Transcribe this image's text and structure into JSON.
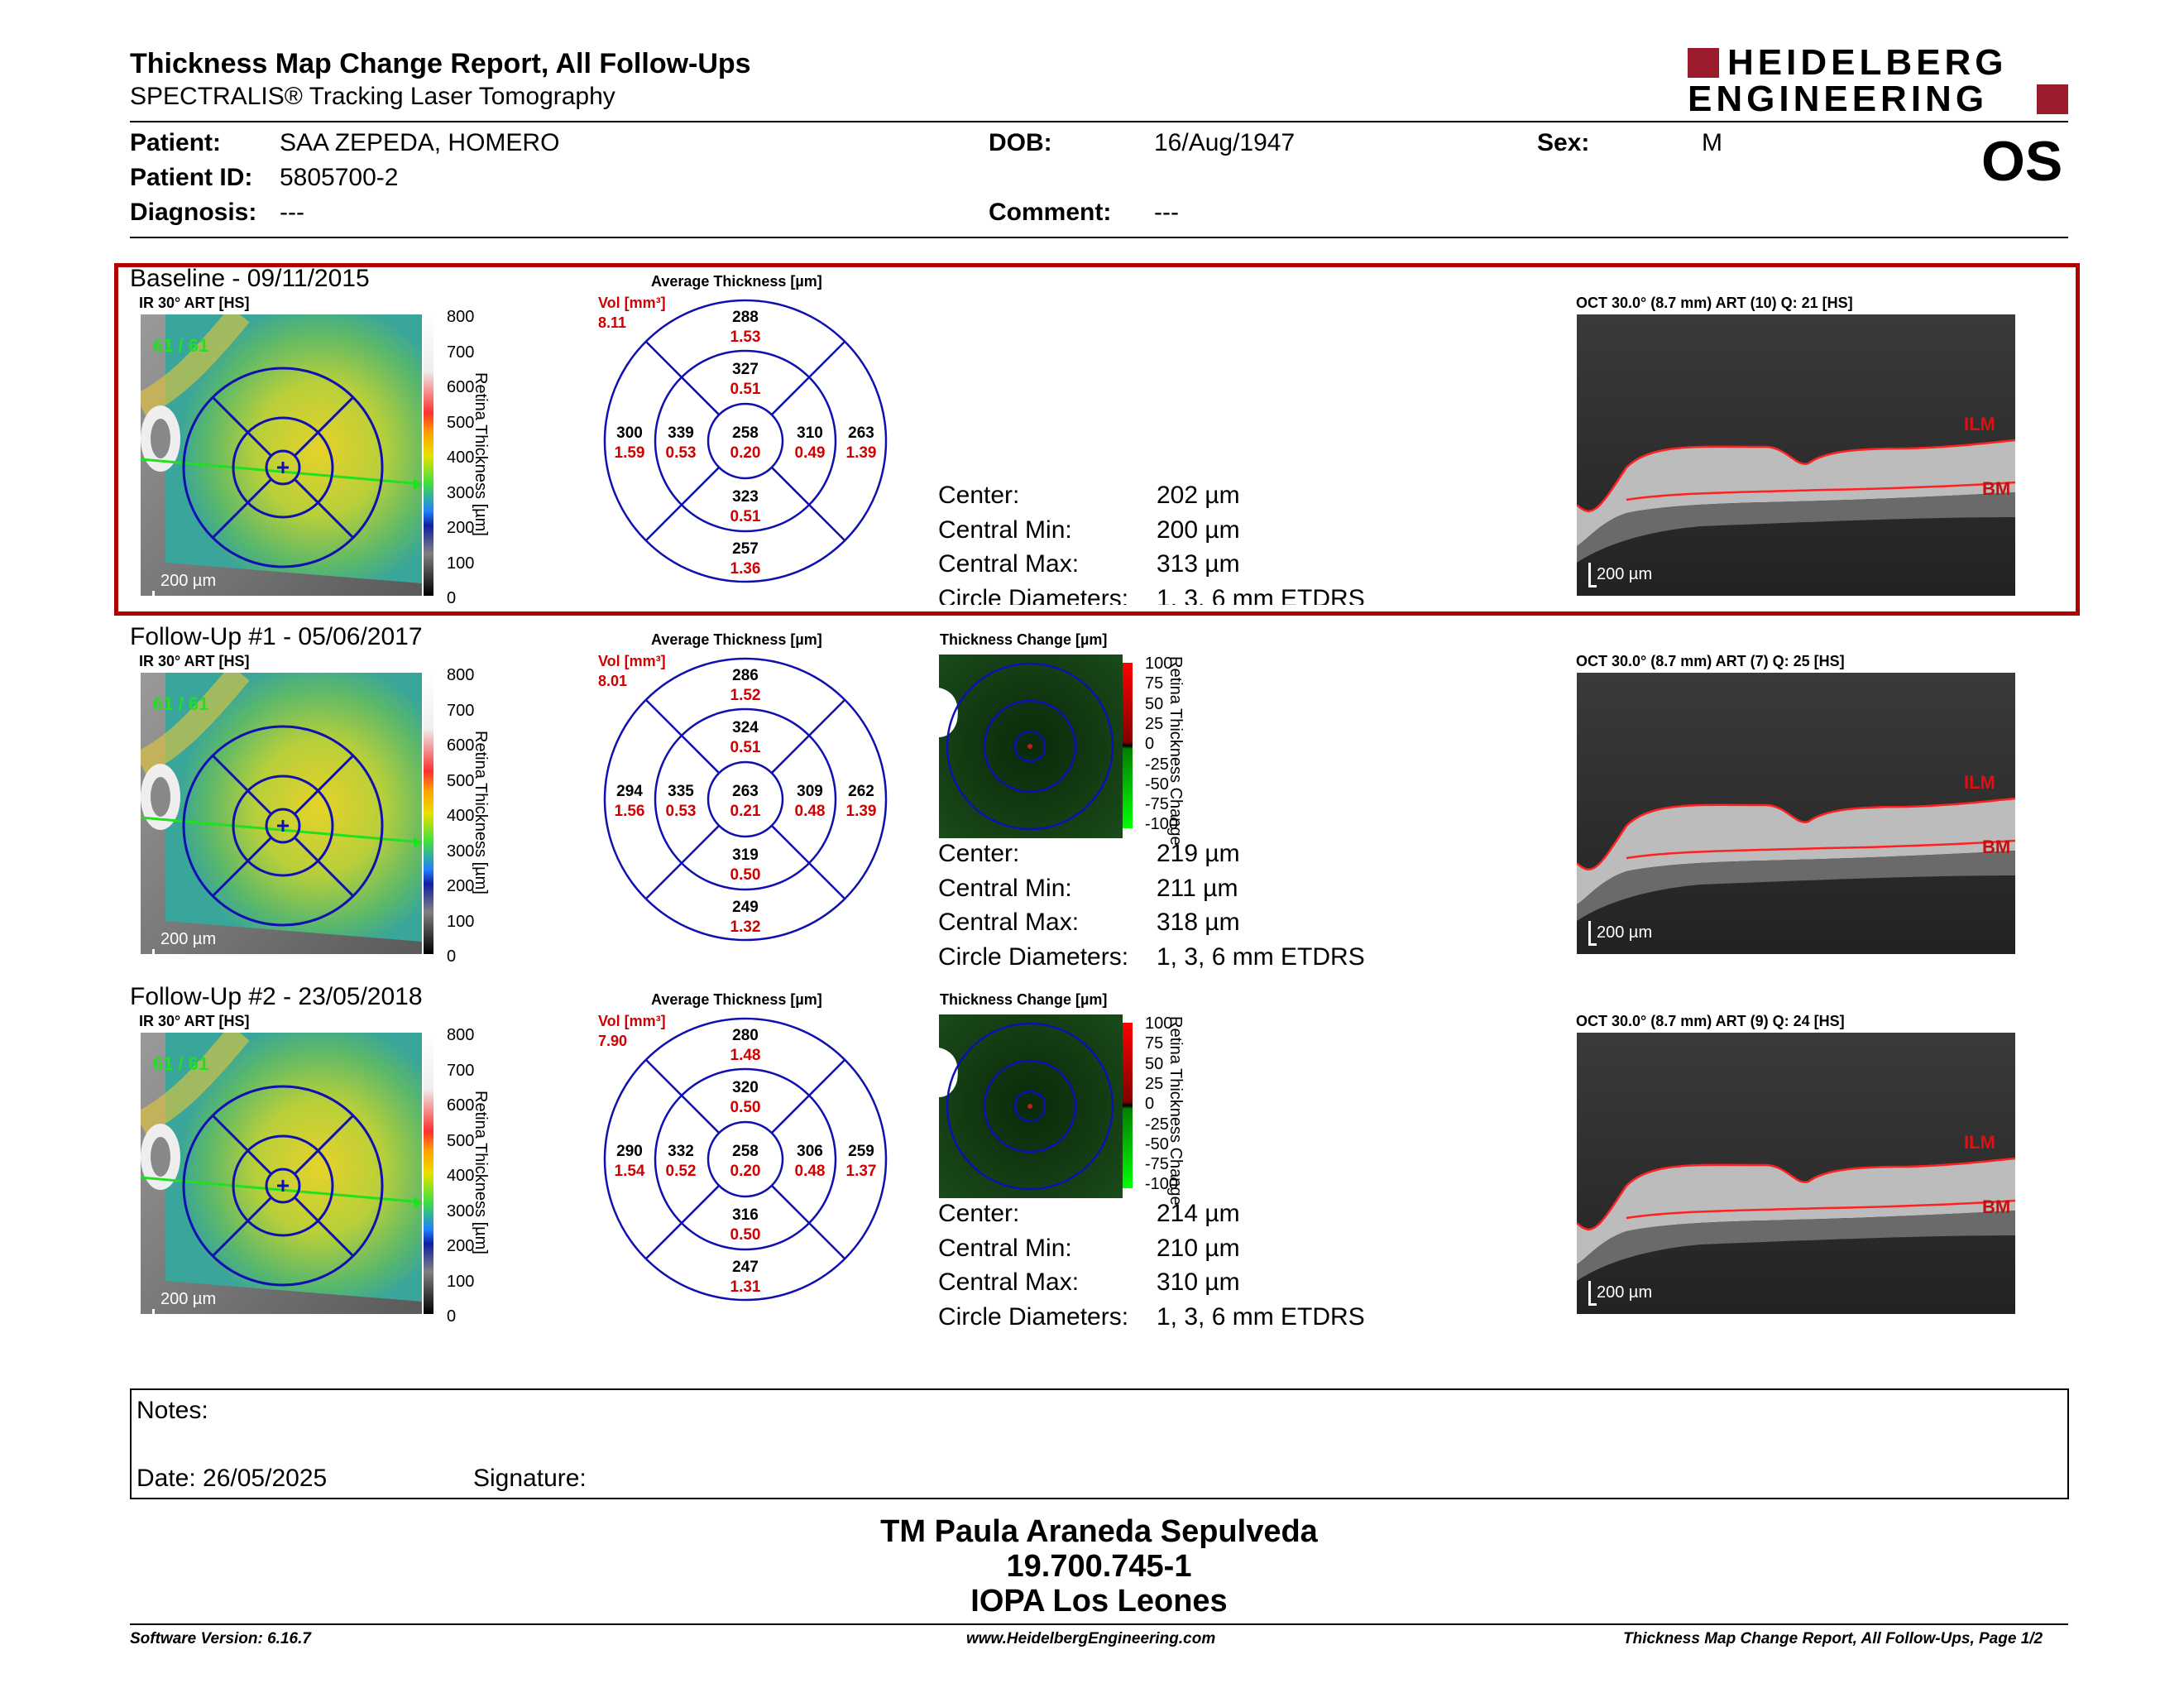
{
  "header": {
    "title": "Thickness Map Change Report, All Follow-Ups",
    "subtitle": "SPECTRALIS® Tracking Laser Tomography",
    "logo_line1": "HEIDELBERG",
    "logo_line2": "ENGINEERING",
    "eye": "OS"
  },
  "patient": {
    "patient_label": "Patient:",
    "patient_value": "SAA ZEPEDA, HOMERO",
    "id_label": "Patient ID:",
    "id_value": "5805700-2",
    "diagnosis_label": "Diagnosis:",
    "diagnosis_value": "---",
    "dob_label": "DOB:",
    "dob_value": "16/Aug/1947",
    "comment_label": "Comment:",
    "comment_value": "---",
    "sex_label": "Sex:",
    "sex_value": "M"
  },
  "common": {
    "ir_label": "IR 30° ART [HS]",
    "avg_title": "Average Thickness [µm]",
    "vol_label": "Vol [mm³]",
    "tc_title": "Thickness Change [µm]",
    "retina_axis": "Retina Thickness [µm]",
    "tc_axis": "Retina Thickness Change",
    "scale_ticks": [
      "800",
      "700",
      "600",
      "500",
      "400",
      "300",
      "200",
      "100",
      "0"
    ],
    "tc_ticks": [
      "100",
      "75",
      "50",
      "25",
      "0",
      "-25",
      "-50",
      "-75",
      "-100"
    ],
    "map_scale": "200 µm",
    "oct_scale": "200 µm",
    "ilm": "ILM",
    "bm": "BM",
    "quality_overlay": "61 / 61",
    "center_label": "Center:",
    "cmin_label": "Central Min:",
    "cmax_label": "Central Max:",
    "circ_label": "Circle Diameters:",
    "circ_value": "1, 3, 6 mm ETDRS"
  },
  "exams": [
    {
      "title": "Baseline - 09/11/2015",
      "total_vol": "8.11",
      "oct_label": "OCT 30.0° (8.7 mm) ART (10) Q: 21 [HS]",
      "grid": {
        "center": [
          "258",
          "0.20"
        ],
        "inner_sup": [
          "327",
          "0.51"
        ],
        "inner_inf": [
          "323",
          "0.51"
        ],
        "inner_left": [
          "339",
          "0.53"
        ],
        "inner_right": [
          "310",
          "0.49"
        ],
        "outer_sup": [
          "288",
          "1.53"
        ],
        "outer_inf": [
          "257",
          "1.36"
        ],
        "outer_left": [
          "300",
          "1.59"
        ],
        "outer_right": [
          "263",
          "1.39"
        ]
      },
      "center": "202 µm",
      "cmin": "200 µm",
      "cmax": "313 µm",
      "has_change": false
    },
    {
      "title": "Follow-Up #1 - 05/06/2017",
      "total_vol": "8.01",
      "oct_label": "OCT 30.0° (8.7 mm) ART (7) Q: 25 [HS]",
      "grid": {
        "center": [
          "263",
          "0.21"
        ],
        "inner_sup": [
          "324",
          "0.51"
        ],
        "inner_inf": [
          "319",
          "0.50"
        ],
        "inner_left": [
          "335",
          "0.53"
        ],
        "inner_right": [
          "309",
          "0.48"
        ],
        "outer_sup": [
          "286",
          "1.52"
        ],
        "outer_inf": [
          "249",
          "1.32"
        ],
        "outer_left": [
          "294",
          "1.56"
        ],
        "outer_right": [
          "262",
          "1.39"
        ]
      },
      "center": "219 µm",
      "cmin": "211 µm",
      "cmax": "318 µm",
      "has_change": true
    },
    {
      "title": "Follow-Up #2 - 23/05/2018",
      "total_vol": "7.90",
      "oct_label": "OCT 30.0° (8.7 mm) ART (9) Q: 24 [HS]",
      "grid": {
        "center": [
          "258",
          "0.20"
        ],
        "inner_sup": [
          "320",
          "0.50"
        ],
        "inner_inf": [
          "316",
          "0.50"
        ],
        "inner_left": [
          "332",
          "0.52"
        ],
        "inner_right": [
          "306",
          "0.48"
        ],
        "outer_sup": [
          "280",
          "1.48"
        ],
        "outer_inf": [
          "247",
          "1.31"
        ],
        "outer_left": [
          "290",
          "1.54"
        ],
        "outer_right": [
          "259",
          "1.37"
        ]
      },
      "center": "214 µm",
      "cmin": "210 µm",
      "cmax": "310 µm",
      "has_change": true
    }
  ],
  "notes": {
    "notes_label": "Notes:",
    "date_label": "Date: 26/05/2025",
    "signature_label": "Signature:"
  },
  "signer": {
    "name": "TM Paula Araneda Sepulveda",
    "id": "19.700.745-1",
    "org": "IOPA Los Leones"
  },
  "footer": {
    "software": "Software Version: 6.16.7",
    "website": "www.HeidelbergEngineering.com",
    "report": "Thickness Map Change Report, All Follow-Ups, Page 1/2"
  },
  "colors": {
    "highlight": "#b00000",
    "grid": "#1010b0",
    "vol": "#d00000",
    "green_line": "#20e020"
  }
}
